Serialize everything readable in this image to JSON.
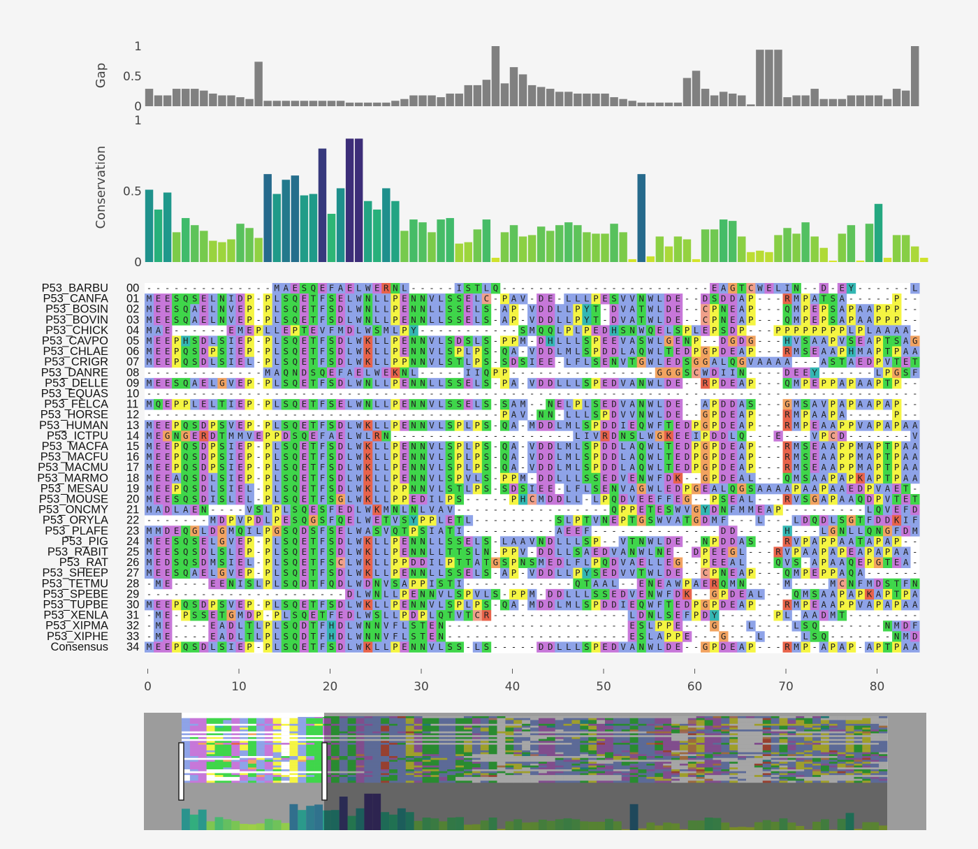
{
  "gap_chart": {
    "ylabel": "Gap",
    "yticks": [
      "0",
      "0.5",
      "1"
    ],
    "values": [
      0.29,
      0.18,
      0.18,
      0.29,
      0.29,
      0.29,
      0.26,
      0.21,
      0.18,
      0.18,
      0.15,
      0.12,
      0.74,
      0.09,
      0.09,
      0.09,
      0.09,
      0.09,
      0.09,
      0.09,
      0.09,
      0.09,
      0.06,
      0.06,
      0.06,
      0.06,
      0.06,
      0.09,
      0.12,
      0.18,
      0.18,
      0.18,
      0.15,
      0.21,
      0.21,
      0.35,
      0.35,
      0.44,
      1.0,
      0.38,
      0.65,
      0.53,
      0.35,
      0.32,
      0.29,
      0.24,
      0.24,
      0.21,
      0.21,
      0.21,
      0.21,
      0.15,
      0.12,
      0.09,
      0.06,
      0.06,
      0.06,
      0.06,
      0.06,
      0.47,
      0.59,
      0.29,
      0.18,
      0.24,
      0.21,
      0.18,
      0.03,
      0.94,
      0.94,
      0.94,
      0.15,
      0.18,
      0.18,
      0.29,
      0.12,
      0.12,
      0.12,
      0.18,
      0.18,
      0.18,
      0.18,
      0.12,
      0.29,
      0.26,
      1.0
    ]
  },
  "conservation_chart": {
    "ylabel": "Conservation",
    "yticks": [
      "0",
      "0.5",
      "1"
    ],
    "values": [
      0.51,
      0.37,
      0.49,
      0.21,
      0.31,
      0.26,
      0.22,
      0.15,
      0.14,
      0.16,
      0.27,
      0.24,
      0.17,
      0.62,
      0.48,
      0.58,
      0.61,
      0.47,
      0.48,
      0.8,
      0.34,
      0.52,
      0.87,
      0.87,
      0.43,
      0.37,
      0.52,
      0.43,
      0.22,
      0.3,
      0.28,
      0.21,
      0.3,
      0.31,
      0.13,
      0.14,
      0.23,
      0.3,
      0.03,
      0.21,
      0.26,
      0.18,
      0.19,
      0.25,
      0.22,
      0.26,
      0.28,
      0.26,
      0.21,
      0.2,
      0.2,
      0.27,
      0.21,
      0.02,
      0.62,
      0.04,
      0.18,
      0.11,
      0.18,
      0.16,
      0.02,
      0.23,
      0.23,
      0.3,
      0.29,
      0.18,
      0.07,
      0.08,
      0.07,
      0.19,
      0.24,
      0.2,
      0.28,
      0.18,
      0.1,
      0.01,
      0.2,
      0.26,
      0.01,
      0.27,
      0.41,
      0.03,
      0.19,
      0.19,
      0.11,
      0.03
    ]
  },
  "alignment": {
    "sequences": [
      {
        "name": "P53_BARBU",
        "idx": "00",
        "seq": "--------------MAESQEFAELWERNL-----ISTLQ-----------------------EAGTCWELIN--D-EY------LPSSFDPNIFD-"
      },
      {
        "name": "P53_CANFA",
        "idx": "01",
        "seq": "MEESQSELNIDP-PLSQETFSELWNLLPENNVLSSELC-PAV-DE-LLLPESVVNWLDE--DSDDAP---RMPATSA-----P---"
      },
      {
        "name": "P53_BOSIN",
        "idx": "02",
        "seq": "MEESQAELNVEP-PLSQETFSDLWNLLPENNLLSSELS-AP-VDDLLPYT-DVATWLDE--CPNEAP---QMPEPSAPAAPPP-"
      },
      {
        "name": "P53_BOVIN",
        "idx": "03",
        "seq": "MEESQAELNVEP-PLSQETFSDLWNLLPENNLLSSELS-AP-VDDLLPYT-DVATWLDE--CPNEAP---QMPEPSAPAAPPP-"
      },
      {
        "name": "P53_CHICK",
        "idx": "04",
        "seq": "MAE------EMEPLLEPTEVFMDLWSMLPY-----------SMQQLPLPEDHSNWQELSPLEPSDP---PPPPPPPPLPLAAAA"
      },
      {
        "name": "P53_CAVPO",
        "idx": "05",
        "seq": "MEEPHSDLSIEP-PLSQETFSDLWKLLPENNVLSDSLS-PPM-DHLLLSPEEVASWLGENP--DGDG---HVSAAPVSEAPTSAG"
      },
      {
        "name": "P53_CHLAE",
        "idx": "06",
        "seq": "MEEPQSDPSIEP-PLSQETFSDLWKLLPENNVLSPLPS-QA-VDDLMLSPDDLAQWLTEDPGPDEAP---RMSEAAPHMAPTPAA"
      },
      {
        "name": "P53_CRIGR",
        "idx": "07",
        "seq": "MEEPQSDLSIEL-PLSQETFSDLWKLLPPNNVLSTLPS-SDSIEE-LFLSENVTGWLEDSGGALQGVAAAA---ASTAEDPVTET"
      },
      {
        "name": "P53_DANRE",
        "idx": "08",
        "seq": "-------------MAQNDSQEFAELWEKNL-----IIQPP----------------GGGSCWDIIN----DEEY------LPGSFDPNFFE"
      },
      {
        "name": "P53_DELLE",
        "idx": "09",
        "seq": "MEESQAELGVEP-PLSQETFSDLWNLLPENNLLSSELS-PA-VDDLLLSPEDVANWLDE--RPDEAP---QMPEPPAPAAPTP-"
      },
      {
        "name": "P53_EQUAS",
        "idx": "10",
        "seq": "-------------------------------------------------------------------------------------"
      },
      {
        "name": "P53_FELCA",
        "idx": "11",
        "seq": "MQEPPLELTIEP-PLSQETFSELWNLLPENNVLSSELS-SAM--NELPLSEDVANWLDE--APDDAS---GMSAVPAPAAPAP-"
      },
      {
        "name": "P53_HORSE",
        "idx": "12",
        "seq": "---------------------------------------PAV-NN-LLLSPDVVNWLDE--GPDEAP---RMPAAPA-----P---"
      },
      {
        "name": "P53_HUMAN",
        "idx": "13",
        "seq": "MEEPQSDPSVEP-PLSQETFSDLWKLLPENNVLSPLPS-QA-MDDLMLSPDDIEQWFTEDPGPDEAP---RMPEAAPPVAPAPAA"
      },
      {
        "name": "P53_ICTPU",
        "idx": "14",
        "seq": "MEGNGERDTMMVEPPDSQEFAELWLRN--------------------LIVRDNSLWGKEEIPDDLQ---E---VPCD-------VL"
      },
      {
        "name": "P53_MACFA",
        "idx": "15",
        "seq": "MEEPQSDPSIEP-PLSQETFSDLWKLLPENNVLSPLPS-QA-VDDLMLSPDDLAQWLTEDPGPDEAP---RMSEAAPPMAPTPAA"
      },
      {
        "name": "P53_MACFU",
        "idx": "16",
        "seq": "MEEPQSDPSIEP-PLSQETFSDLWKLLPENNVLSPLPS-QA-VDDLMLSPDDLAQWLTEDPGPDEAP---RMSEAAPPMAPTPAA"
      },
      {
        "name": "P53_MACMU",
        "idx": "17",
        "seq": "MEEPQSDPSIEP-PLSQETFSDLWKLLPENNVLSPLPS-QA-VDDLMLSPDDLAQWLTEDPGPDEAP---RMSEAAPPMAPTPAA"
      },
      {
        "name": "P53_MARMO",
        "idx": "18",
        "seq": "MEEAQSDLSIEP-PLSQETFSDLWKLLPENNVLSPVLS-PPM-DDLLLSSEDVENWFDK--GPDEAL---QMSAAPAPKAPTPAA"
      },
      {
        "name": "P53_MESAU",
        "idx": "19",
        "seq": "MEEPQSDLSIEL-PLSQETFSDLWKLLPPNNVLSTLPS-SDSIEE-LFLSENVAGWLEDPGEALQGSAAAAPAAPAAEDPVAET"
      },
      {
        "name": "P53_MOUSE",
        "idx": "20",
        "seq": "MEESQSDISLEL-PLSQETFSGLWKLLPPEDILPS-----PHCMDDLL-LPQDVEEFFEG--PSEAL---RVSGAPAAQDPVTET"
      },
      {
        "name": "P53_ONCMY",
        "idx": "21",
        "seq": "MADLAEN----VSLPLSQESFEDLWKMNLNLVAV-----------------QPPETESWVGYDNFMMEAP---------LQVEFDPSLFEV"
      },
      {
        "name": "P53_ORYLA",
        "idx": "22",
        "seq": "-------MDPVPDLPESQGSFQELWETVSYPPLETL---------SLPTVNEPTGSWVATGDMF---L---LDQDLSGTFDDKIFD-"
      },
      {
        "name": "P53_PLAFE",
        "idx": "23",
        "seq": "MMDEQGLDGMQILPGSQDSFSELWASVQTPSIATI----------AEEF--------------DD-----H---LGNLLQNGFDMNLFE"
      },
      {
        "name": "P53_PIG",
        "idx": "24",
        "seq": "MEESQSELGVEP-PLSQETFSDLWKLLPENNLLSSELS-LAAVNDLLLSP--VTNWLDE--NPDDAS---RVPAPPAATAPAP-"
      },
      {
        "name": "P53_RABIT",
        "idx": "25",
        "seq": "MEESQSDLSLEP-PLSQETFSDLWKLLPENNLLTTSLN-PPV-DDLLSAEDVANWLNE--DPEEGL---RVPAAPAPEAPAPAA"
      },
      {
        "name": "P53_RAT",
        "idx": "26",
        "seq": "MEDSQSDMSIEL-PLSQETFSCLWKLLPPDDILPTTATGSPNSMEDLFLPQDVAELLEG--PEEAL---QVS-APAAQEPGTEA"
      },
      {
        "name": "P53_SHEEP",
        "idx": "27",
        "seq": "MEESQAELGVEP-PLSQETFSDLWKLLPENNLLSSELS-AP-VDDLLPYSEDVVTWLDE--CPNEAP---QMPEPPAQA-------"
      },
      {
        "name": "P53_TETMU",
        "idx": "28",
        "seq": "-ME----EENISLPLSQDTFQDLWDNVSAPPISTI------------QTAAL--ENEAWPAERQMN----M----MCNFMDSTFNEALFN"
      },
      {
        "name": "P53_SPEBE",
        "idx": "29",
        "seq": "----------------------DLWNLLPENNVLSPVLS-PPM-DDLLLSSEDVENWFDK--GPDEAL---QMSAAPAPKAPTPAA"
      },
      {
        "name": "P53_TUPBE",
        "idx": "30",
        "seq": "MEEPQSDPSVEP-PLSQETFSDLWKLLPENNVLSPLPS-QA-MDDLMLSPDDIEQWFTEDPGPDEAP---RMPEAAPPVAPAPAA"
      },
      {
        "name": "P53_XENLA",
        "idx": "31",
        "seq": "-ME-PSSETGMDP-PLSQETFEDLWSLLPDPLQTVTCR---------------LDNLSEFPDY------PL-AADMT---------V"
      },
      {
        "name": "P53_XIPMA",
        "idx": "32",
        "seq": "-ME----EADLTLPLSQDTFHDLWNNVFLSTEN--------------------ESLPPE---G---L----LSQ-------NMDFWE"
      },
      {
        "name": "P53_XIPHE",
        "idx": "33",
        "seq": "-ME----EADLTLPLSQDTFHDLWNNVFLSTEN--------------------ESLAPPE---G---L----LSQ-------NMDFWE"
      },
      {
        "name": "Consensus",
        "idx": "34",
        "seq": "MEEPQSDLSIEP-PLSQETFSDLWKLLPENNVLSS-LS-----DDLLLSPEDVANWLDE--GPDEAP---RMP-APAP-APTPAA"
      }
    ],
    "xticks": [
      "0",
      "10",
      "20",
      "30",
      "40",
      "50",
      "60",
      "70",
      "80"
    ]
  },
  "colors": {
    "hydrophobic": "#8ea3e8",
    "positive": "#e8634a",
    "negative": "#c777d9",
    "polar": "#3fd64a",
    "cysteine": "#f0a08a",
    "glycine": "#f2a360",
    "proline": "#f5f542",
    "aromatic": "#33b7b3",
    "gap_bar": "#808080",
    "background": "#f5f5f5"
  },
  "navigator": {
    "label": "overview"
  }
}
